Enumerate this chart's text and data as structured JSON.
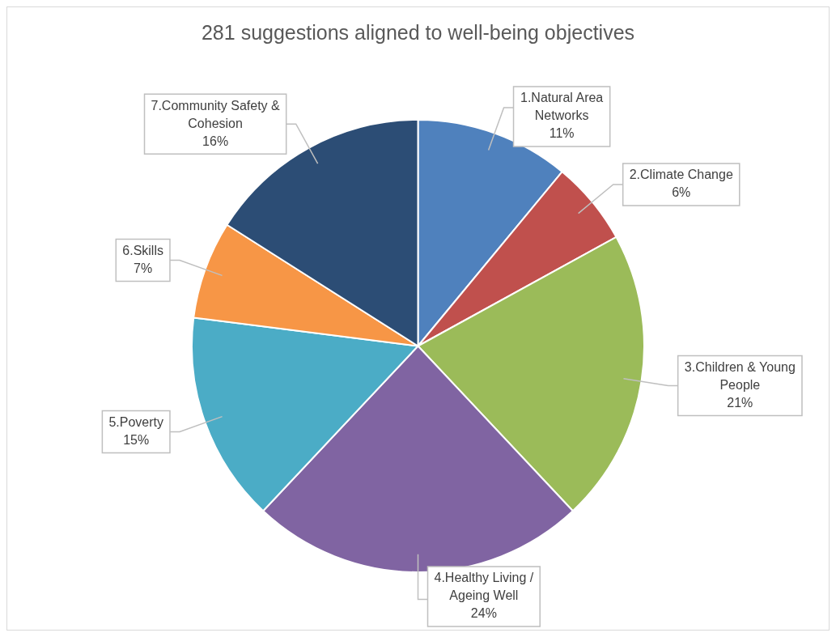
{
  "chart_data": {
    "type": "pie",
    "title": "281 suggestions aligned to well-being objectives",
    "categories": [
      "1.Natural Area Networks",
      "2.Climate Change",
      "3.Children & Young People",
      "4.Healthy Living / Ageing Well",
      "5.Poverty",
      "6.Skills",
      "7.Community Safety & Cohesion"
    ],
    "values": [
      11,
      6,
      21,
      24,
      15,
      7,
      16
    ],
    "value_labels": [
      "11%",
      "6%",
      "21%",
      "24%",
      "15%",
      "7%",
      "16%"
    ],
    "colors": [
      "#4f81bd",
      "#c0504d",
      "#9bbb59",
      "#8064a2",
      "#4bacc6",
      "#f79646",
      "#2c4d75"
    ],
    "legend": false
  }
}
